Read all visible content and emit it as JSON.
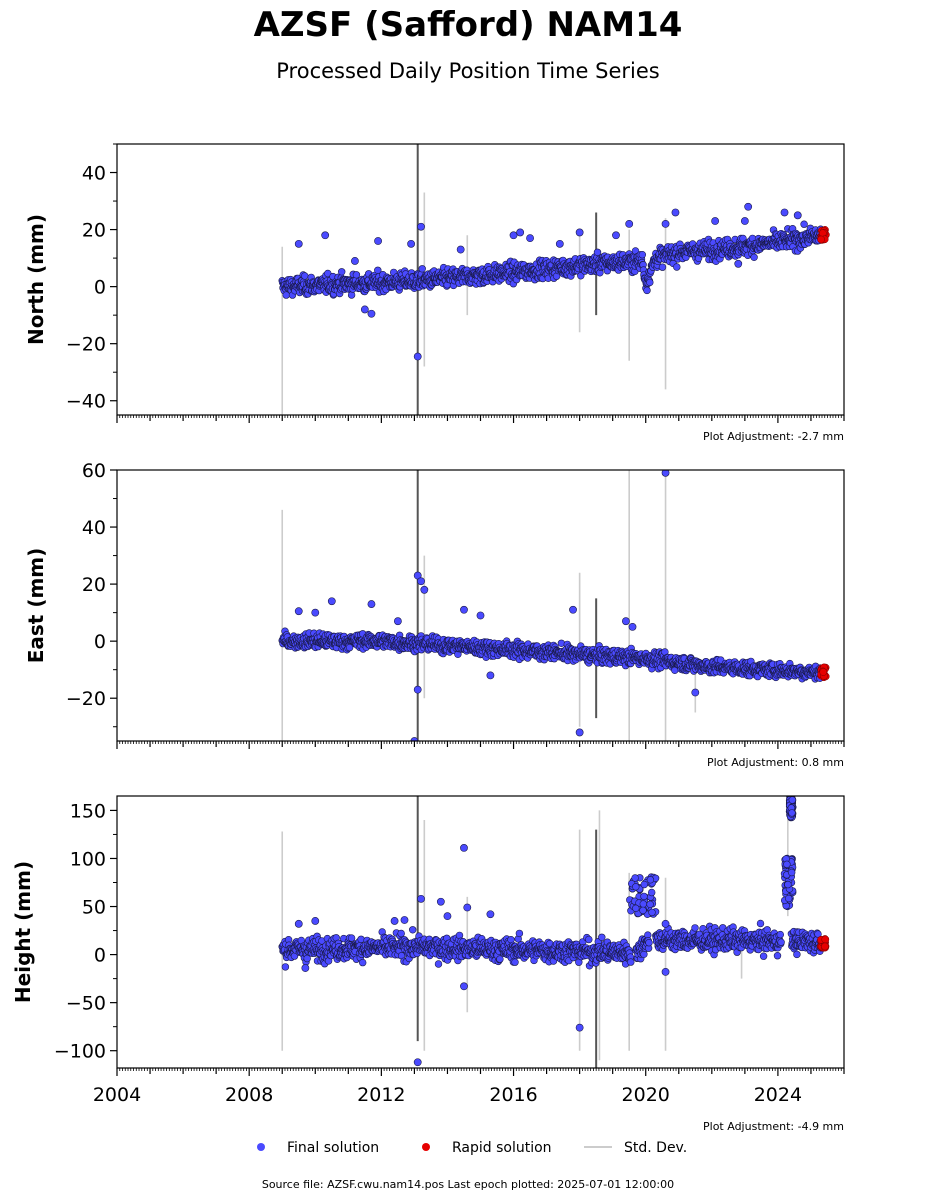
{
  "figure": {
    "title": "AZSF (Safford) NAM14",
    "subtitle": "Processed Daily Position Time Series",
    "source": "Source file: AZSF.cwu.nam14.pos  Last epoch plotted: 2025-07-01 12:00:00"
  },
  "legend": [
    {
      "label": "Final solution",
      "color": "#4a4aff",
      "kind": "dot"
    },
    {
      "label": "Rapid solution",
      "color": "#e60000",
      "kind": "dot"
    },
    {
      "label": "Std. Dev.",
      "color": "#cccccc",
      "kind": "line"
    }
  ],
  "colors": {
    "final": "#4a4aff",
    "rapid": "#e60000",
    "stddev": "#cccccc",
    "stddev_dark": "#555555"
  },
  "chart_data": [
    {
      "type": "scatter",
      "ylabel": "North (mm)",
      "adjustment": "Plot Adjustment: -2.7 mm",
      "xlim": [
        "2004-01-01",
        "2026-01-01"
      ],
      "ylim": [
        -45,
        50
      ],
      "yticks": [
        -40,
        -20,
        0,
        20,
        40
      ],
      "trend": [
        [
          2009.0,
          0
        ],
        [
          2013.0,
          2
        ],
        [
          2016.0,
          5
        ],
        [
          2018.5,
          8
        ],
        [
          2019.9,
          9
        ],
        [
          2020.0,
          1
        ],
        [
          2020.3,
          10
        ],
        [
          2021.0,
          12
        ],
        [
          2023.0,
          14
        ],
        [
          2025.4,
          18
        ]
      ],
      "noise": 2.2,
      "outliers": [
        [
          2009.5,
          15
        ],
        [
          2010.3,
          18
        ],
        [
          2011.2,
          9
        ],
        [
          2011.5,
          -8
        ],
        [
          2011.7,
          -9.5
        ],
        [
          2011.9,
          16
        ],
        [
          2012.9,
          15
        ],
        [
          2013.2,
          21
        ],
        [
          2013.1,
          -24.5
        ],
        [
          2014.4,
          13
        ],
        [
          2016.0,
          18
        ],
        [
          2016.2,
          19
        ],
        [
          2016.5,
          17
        ],
        [
          2017.4,
          15
        ],
        [
          2018.0,
          19
        ],
        [
          2019.1,
          18
        ],
        [
          2019.5,
          22
        ],
        [
          2020.6,
          22
        ],
        [
          2020.9,
          26
        ],
        [
          2022.1,
          23
        ],
        [
          2023.1,
          28
        ],
        [
          2023.0,
          23
        ],
        [
          2024.2,
          26
        ],
        [
          2024.6,
          25
        ],
        [
          2022.8,
          8
        ]
      ],
      "stddev_bars": [
        [
          2009.0,
          -45,
          14,
          "light"
        ],
        [
          2013.1,
          -45,
          50,
          "dark"
        ],
        [
          2013.3,
          -28,
          33,
          "light"
        ],
        [
          2014.6,
          -10,
          18,
          "light"
        ],
        [
          2018.0,
          -16,
          19,
          "light"
        ],
        [
          2018.5,
          -10,
          26,
          "dark"
        ],
        [
          2019.5,
          -26,
          20,
          "light"
        ],
        [
          2020.6,
          -36,
          24,
          "light"
        ]
      ],
      "rapid": {
        "x0": 2025.3,
        "x1": 2025.45,
        "y": 18,
        "spread": 2
      }
    },
    {
      "type": "scatter",
      "ylabel": "East (mm)",
      "adjustment": "Plot Adjustment: 0.8 mm",
      "xlim": [
        "2004-01-01",
        "2026-01-01"
      ],
      "ylim": [
        -35,
        60
      ],
      "yticks": [
        -20,
        0,
        20,
        40,
        60
      ],
      "trend": [
        [
          2009.0,
          0
        ],
        [
          2012.0,
          0
        ],
        [
          2016.0,
          -3
        ],
        [
          2018.5,
          -5
        ],
        [
          2020.0,
          -6
        ],
        [
          2022.0,
          -9
        ],
        [
          2025.4,
          -11
        ]
      ],
      "noise": 1.8,
      "outliers": [
        [
          2009.5,
          10.5
        ],
        [
          2010.0,
          10
        ],
        [
          2010.5,
          14
        ],
        [
          2011.7,
          13
        ],
        [
          2013.1,
          23
        ],
        [
          2013.2,
          21
        ],
        [
          2013.3,
          18
        ],
        [
          2013.1,
          -17
        ],
        [
          2013.0,
          -35
        ],
        [
          2014.5,
          11
        ],
        [
          2015.0,
          9
        ],
        [
          2017.8,
          11
        ],
        [
          2018.0,
          -32
        ],
        [
          2019.4,
          7
        ],
        [
          2019.6,
          5
        ],
        [
          2020.6,
          59
        ],
        [
          2021.5,
          -18
        ],
        [
          2015.3,
          -12
        ],
        [
          2012.5,
          7
        ]
      ],
      "stddev_bars": [
        [
          2009.0,
          -35,
          46,
          "light"
        ],
        [
          2013.1,
          -35,
          60,
          "dark"
        ],
        [
          2013.3,
          -20,
          30,
          "light"
        ],
        [
          2018.0,
          -30,
          24,
          "light"
        ],
        [
          2018.5,
          -27,
          15,
          "dark"
        ],
        [
          2019.5,
          -35,
          60,
          "light"
        ],
        [
          2020.6,
          -35,
          60,
          "light"
        ],
        [
          2021.5,
          -25,
          -10,
          "light"
        ]
      ],
      "rapid": {
        "x0": 2025.3,
        "x1": 2025.45,
        "y": -11,
        "spread": 2
      }
    },
    {
      "type": "scatter",
      "ylabel": "Height (mm)",
      "adjustment": "Plot Adjustment: -4.9 mm",
      "xlim": [
        "2004-01-01",
        "2026-01-01"
      ],
      "ylim": [
        -118,
        165
      ],
      "yticks": [
        -100,
        -50,
        0,
        50,
        100,
        150
      ],
      "trend": [
        [
          2009.0,
          5
        ],
        [
          2013.0,
          8
        ],
        [
          2016.0,
          5
        ],
        [
          2018.5,
          3
        ],
        [
          2019.8,
          2
        ],
        [
          2020.0,
          15
        ],
        [
          2022.0,
          15
        ],
        [
          2025.4,
          13
        ]
      ],
      "noise": 8,
      "gaps": [
        [
          2019.55,
          2019.7
        ],
        [
          2020.1,
          2020.3
        ],
        [
          2024.1,
          2024.4
        ]
      ],
      "outliers": [
        [
          2009.5,
          32
        ],
        [
          2010.0,
          35
        ],
        [
          2012.4,
          35
        ],
        [
          2012.7,
          36
        ],
        [
          2013.2,
          58
        ],
        [
          2013.1,
          -112
        ],
        [
          2013.8,
          55
        ],
        [
          2014.0,
          40
        ],
        [
          2014.5,
          111
        ],
        [
          2014.6,
          49
        ],
        [
          2014.5,
          -33
        ],
        [
          2015.3,
          42
        ],
        [
          2018.0,
          -76
        ],
        [
          2020.6,
          32
        ],
        [
          2020.6,
          -18
        ],
        [
          2009.7,
          -14
        ]
      ],
      "clusters": [
        [
          2019.5,
          2020.3,
          40,
          82
        ],
        [
          2024.2,
          2024.45,
          50,
          100
        ],
        [
          2024.35,
          2024.45,
          140,
          165
        ]
      ],
      "stddev_bars": [
        [
          2009.0,
          -100,
          128,
          "light"
        ],
        [
          2013.1,
          -90,
          165,
          "dark"
        ],
        [
          2013.3,
          -100,
          140,
          "light"
        ],
        [
          2014.6,
          -60,
          60,
          "light"
        ],
        [
          2018.0,
          -100,
          130,
          "light"
        ],
        [
          2018.5,
          -118,
          130,
          "dark"
        ],
        [
          2018.6,
          -110,
          150,
          "light"
        ],
        [
          2019.5,
          -100,
          85,
          "light"
        ],
        [
          2020.6,
          -100,
          80,
          "light"
        ],
        [
          2022.9,
          -25,
          20,
          "light"
        ],
        [
          2024.3,
          40,
          165,
          "light"
        ]
      ],
      "rapid": {
        "x0": 2025.3,
        "x1": 2025.45,
        "y": 12,
        "spread": 5
      }
    }
  ],
  "xticks": [
    "2004",
    "2008",
    "2012",
    "2016",
    "2020",
    "2024"
  ]
}
